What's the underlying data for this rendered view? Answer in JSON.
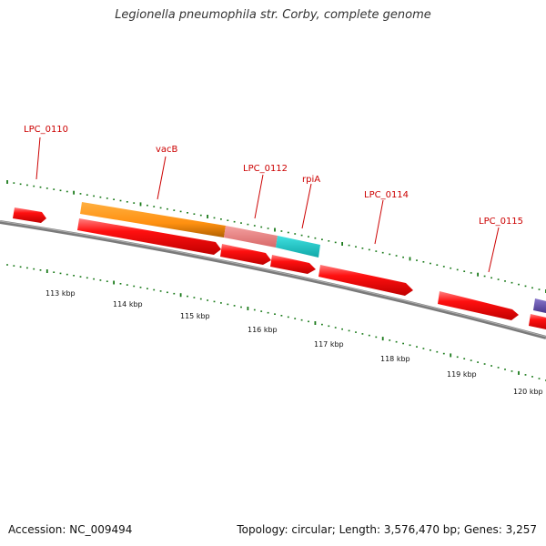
{
  "title": "Legionella pneumophila str. Corby, complete genome",
  "footer": {
    "accession": "Accession: NC_009494",
    "topology": "Topology: circular; Length: 3,576,470 bp; Genes: 3,257"
  },
  "gene_labels": [
    {
      "name": "LPC_0110"
    },
    {
      "name": "vacB"
    },
    {
      "name": "LPC_0112"
    },
    {
      "name": "rpiA"
    },
    {
      "name": "LPC_0114"
    },
    {
      "name": "LPC_0115"
    }
  ],
  "ruler": {
    "units": "kbp",
    "ticks": [
      "113 kbp",
      "114 kbp",
      "115 kbp",
      "116 kbp",
      "117 kbp",
      "118 kbp",
      "119 kbp",
      "120 kbp"
    ]
  },
  "colors": {
    "cds": "#ee1111",
    "cds_highlight": "#ff7777",
    "vacB_rna": "#ff9922",
    "lpc0112_rna": "#f08888",
    "rpiA_rna": "#22cccc",
    "other_feature": "#6655aa",
    "backbone": "#808080",
    "tick": "#1a7a1a",
    "label": "#cc0000"
  }
}
